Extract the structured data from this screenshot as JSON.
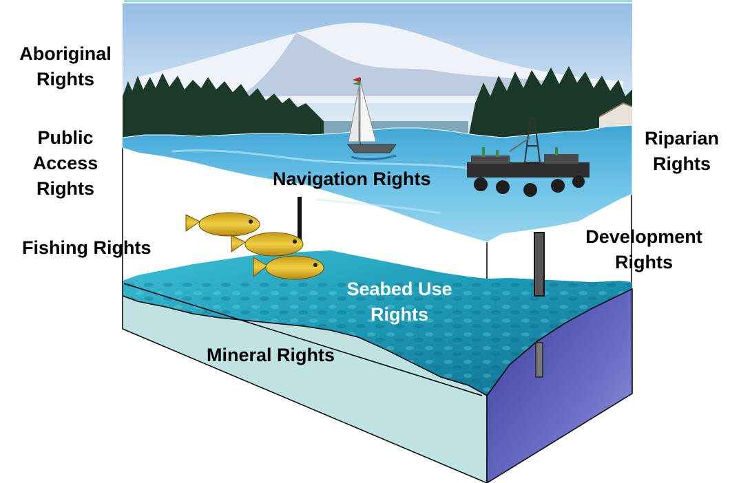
{
  "labels": {
    "aboriginal": "Aboriginal\nRights",
    "public_access": "Public\nAccess\nRights",
    "riparian": "Riparian\nRights",
    "navigation": "Navigation Rights",
    "fishing": "Fishing Rights",
    "development": "Development\nRights",
    "seabed_use": "Seabed Use\nRights",
    "mineral": "Mineral Rights"
  },
  "colors": {
    "sky_top": "#9fc3e6",
    "sky_bottom": "#dce9f5",
    "mountain_snow": "#f3f6fb",
    "mountain_shadow": "#7d94b5",
    "forest": "#1f3d2b",
    "water_surface": "#4fb0dc",
    "water_surface_light": "#8fd1ee",
    "seabed_water": "#1f9fba",
    "seabed_light": "#59c4d3",
    "front_face": "#bfe3e3",
    "side_face": "#5f62b8",
    "fish": "#e0b82a",
    "pipe": "#222222"
  }
}
